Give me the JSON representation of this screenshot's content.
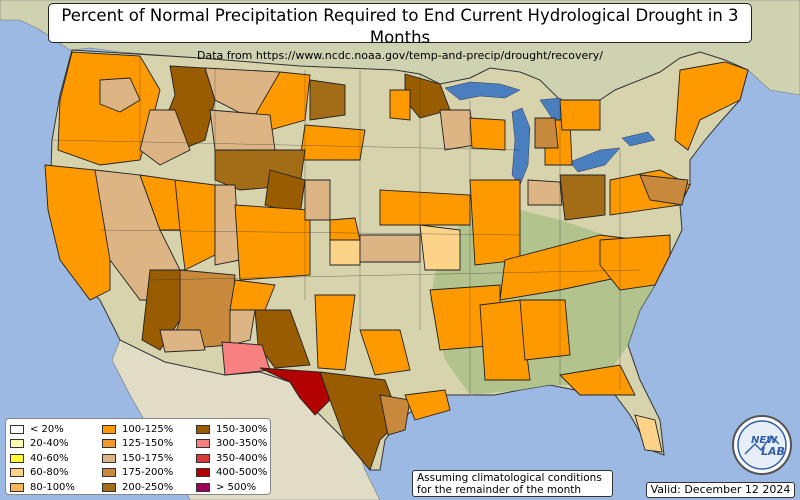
{
  "title": "Percent of Normal Precipitation Required to End Current Hydrological Drought in 3 Months",
  "subtitle": "Data from https://www.ncdc.noaa.gov/temp-and-precip/drought/recovery/",
  "legend": {
    "columns": [
      [
        {
          "label": "< 20%",
          "color": "#ffffff"
        },
        {
          "label": "20-40%",
          "color": "#ffffb3"
        },
        {
          "label": "40-60%",
          "color": "#ffff33"
        },
        {
          "label": "60-80%",
          "color": "#fdd38a"
        },
        {
          "label": "80-100%",
          "color": "#fbb55a"
        }
      ],
      [
        {
          "label": "100-125%",
          "color": "#ff9900"
        },
        {
          "label": "125-150%",
          "color": "#f39a2c"
        },
        {
          "label": "150-175%",
          "color": "#ddb585"
        },
        {
          "label": "175-200%",
          "color": "#c8893c"
        },
        {
          "label": "200-250%",
          "color": "#a36c16"
        }
      ],
      [
        {
          "label": "150-300%",
          "color": "#9a5c00"
        },
        {
          "label": "300-350%",
          "color": "#f98080"
        },
        {
          "label": "350-400%",
          "color": "#d63a3a"
        },
        {
          "label": "400-500%",
          "color": "#b30000"
        },
        {
          "label": "> 500%",
          "color": "#a0005a"
        }
      ]
    ]
  },
  "note": {
    "line1": "Assuming climatological conditions",
    "line2": "for the remainder of the month"
  },
  "valid": "Valid: December 12 2024",
  "logo": {
    "line1": "NEW",
    "line2": "LAB",
    "color": "#2f5fa8"
  },
  "colors": {
    "ocean": "#9bb9e3",
    "land": "#d9d6b4",
    "land_green": "#a9bf86",
    "canada": "#cfd2b0",
    "mexico": "#e1dcc6",
    "lakes": "#4a7fbf"
  }
}
